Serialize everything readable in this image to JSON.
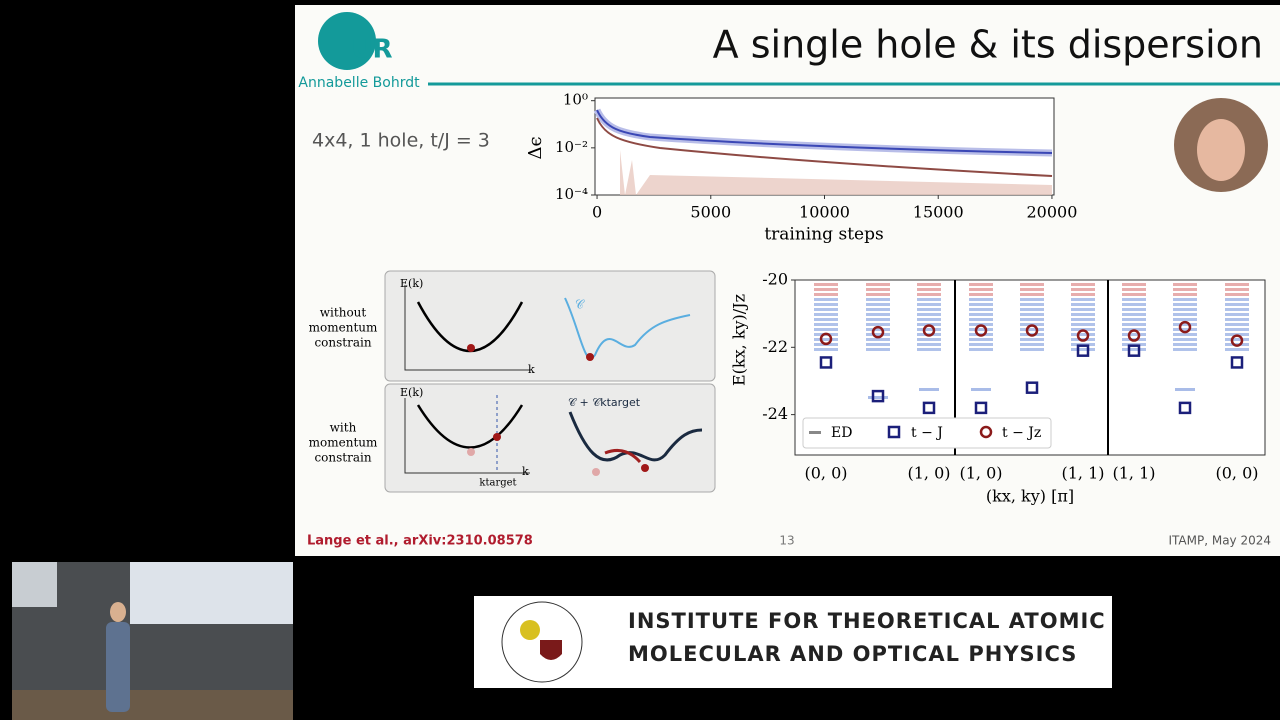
{
  "slide": {
    "title": "A single hole & its dispersion",
    "logo": "UR",
    "author": "Annabelle Bohrdt",
    "setup": "4x4, 1 hole, t/J = 3",
    "citation": "Lange et al., arXiv:2310.08578",
    "page": "13",
    "venue": "ITAMP, May 2024"
  },
  "training_plot": {
    "ylabel": "Δϵ",
    "xlabel": "training steps",
    "xlim": [
      -90,
      20090
    ],
    "xticks": [
      0,
      5000,
      10000,
      15000,
      20000
    ],
    "ylog": true,
    "ylim": [
      0.0001,
      1.3
    ],
    "yticks": [
      {
        "value": 1,
        "label": "10⁰"
      },
      {
        "value": 0.01,
        "label": "10⁻²"
      },
      {
        "value": 0.0001,
        "label": "10⁻⁴"
      }
    ]
  },
  "diagram": {
    "without": [
      "without",
      "momentum",
      "constrain"
    ],
    "with": [
      "with",
      "momentum",
      "constrain"
    ],
    "energy_axis": "E(k)",
    "k_axis": "k",
    "k_target": "ktarget",
    "cost": "𝒞",
    "cost_constrained": "𝒞 + 𝒞ktarget"
  },
  "dispersion_plot": {
    "ylabel": "E(kx, ky)/Jz",
    "xlabel": "(kx, ky) [π]",
    "ylim": [
      -25.2,
      -20
    ],
    "yticks": [
      -20,
      -22,
      -24
    ],
    "xticks": [
      "(0, 0)",
      "(1, 0)",
      "(1, 0)",
      "(1, 1)",
      "(1, 1)",
      "(0, 0)"
    ],
    "series": [
      {
        "name": "ED",
        "color": "#6f8fd8"
      },
      {
        "name": "t − J",
        "color": "#1b1f7a",
        "values": [
          -22.45,
          -23.45,
          -23.8,
          -23.8,
          -23.2,
          -22.1,
          -22.1,
          -23.8,
          -22.45
        ]
      },
      {
        "name": "t − Jz",
        "color": "#8b1a1a",
        "values": [
          -21.75,
          -21.55,
          -21.5,
          -21.5,
          -21.5,
          -21.65,
          -21.65,
          -21.4,
          -21.8
        ]
      }
    ]
  },
  "banner": {
    "line1": "INSTITUTE FOR THEORETICAL ATOMIC",
    "line2": "MOLECULAR AND OPTICAL PHYSICS"
  }
}
